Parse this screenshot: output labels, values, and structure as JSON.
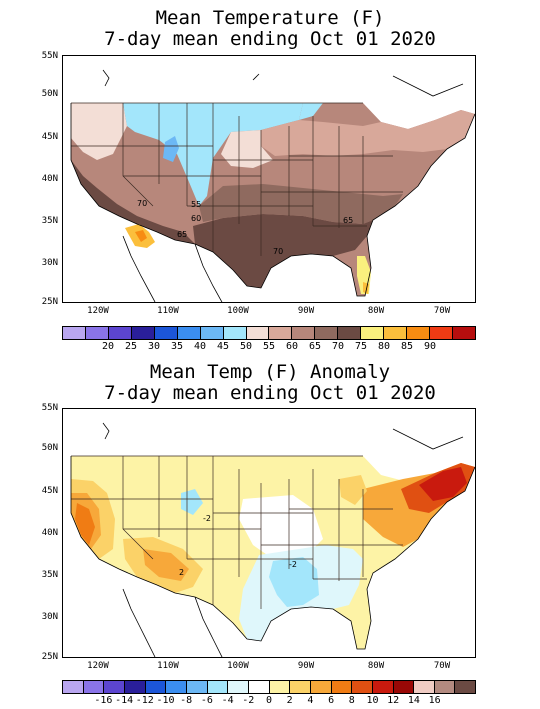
{
  "top_map": {
    "title_line1": "Mean Temperature (F)",
    "title_line2": "7-day mean ending Oct 01 2020",
    "lat_labels": [
      "55N",
      "50N",
      "45N",
      "40N",
      "35N",
      "30N",
      "25N"
    ],
    "lon_labels": [
      "120W",
      "110W",
      "100W",
      "90W",
      "80W",
      "70W"
    ],
    "contour_labels": [
      "70",
      "55",
      "60",
      "65",
      "65",
      "70"
    ],
    "colorbar": {
      "colors": [
        "#b9a6f0",
        "#8a74e8",
        "#5c45d0",
        "#2a1f9a",
        "#1c56d8",
        "#3b8ef0",
        "#6cb8f5",
        "#a3e6fb",
        "#f3ded6",
        "#d8a89a",
        "#b7877b",
        "#8f6a5f",
        "#6b4a43",
        "#faf07e",
        "#fbbf3c",
        "#f78c12",
        "#ef3b14",
        "#b60e0e"
      ],
      "labels": [
        "20",
        "25",
        "30",
        "35",
        "40",
        "45",
        "50",
        "55",
        "60",
        "65",
        "70",
        "75",
        "80",
        "85",
        "90"
      ]
    }
  },
  "bottom_map": {
    "title_line1": "Mean Temp (F) Anomaly",
    "title_line2": "7-day mean ending Oct 01 2020",
    "lat_labels": [
      "55N",
      "50N",
      "45N",
      "40N",
      "35N",
      "30N",
      "25N"
    ],
    "lon_labels": [
      "120W",
      "110W",
      "100W",
      "90W",
      "80W",
      "70W"
    ],
    "contour_labels": [
      "2",
      "-2",
      "-2"
    ],
    "colorbar": {
      "colors": [
        "#b9a6f0",
        "#8a74e8",
        "#5c45d0",
        "#2a1f9a",
        "#1c56d8",
        "#3b8ef0",
        "#6cb8f5",
        "#a3e6fb",
        "#dff7fb",
        "#ffffff",
        "#fdf3a6",
        "#fbd268",
        "#f7a83a",
        "#f07c14",
        "#e05012",
        "#c91a0e",
        "#990806",
        "#f0ccc4",
        "#b38a80",
        "#6b4a43"
      ],
      "labels": [
        "-16",
        "-14",
        "-12",
        "-10",
        "-8",
        "-6",
        "-4",
        "-2",
        "0",
        "2",
        "4",
        "6",
        "8",
        "10",
        "12",
        "14",
        "16"
      ]
    }
  }
}
